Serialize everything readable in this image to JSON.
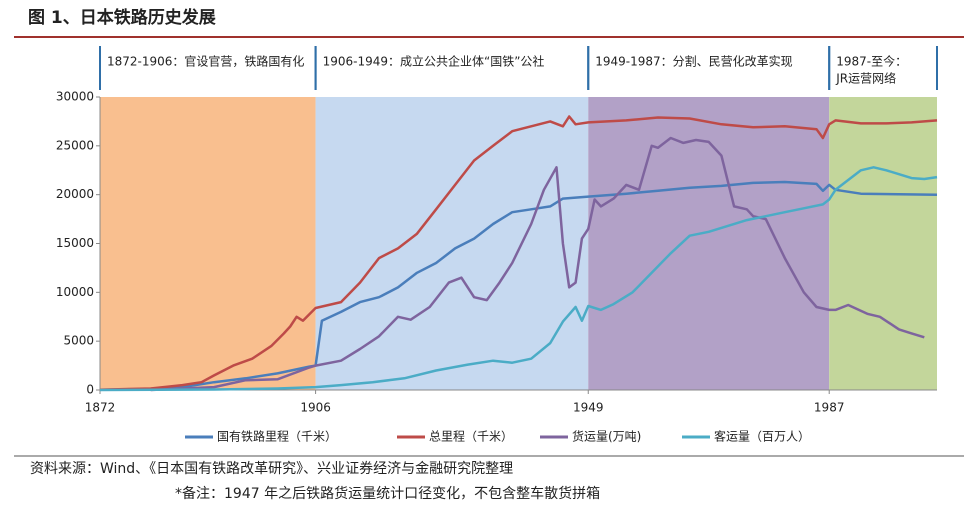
{
  "chart_data": {
    "type": "line",
    "title": "图 1、日本铁路历史发展",
    "xlim": [
      1872,
      2004
    ],
    "xticks": [
      1872,
      1906,
      1949,
      1987
    ],
    "ylim": [
      0,
      30000
    ],
    "yticks": [
      0,
      5000,
      10000,
      15000,
      20000,
      25000,
      30000
    ],
    "legend": "bottom",
    "eras": [
      {
        "label": [
          "1872-1906：官设官营，铁路国有化"
        ],
        "start": 1872,
        "end": 1906,
        "color": "#f9bf8f"
      },
      {
        "label": [
          "1906-1949：成立公共企业体“国铁”公社"
        ],
        "start": 1906,
        "end": 1949,
        "color": "#c6d9f0"
      },
      {
        "label": [
          "1949-1987：分割、民营化改革实现"
        ],
        "start": 1949,
        "end": 1987,
        "color": "#b2a1c7"
      },
      {
        "label": [
          "1987-至今：",
          "JR运营网络"
        ],
        "start": 1987,
        "end": 2004,
        "color": "#c3d69b"
      }
    ],
    "series": [
      {
        "name": "国有铁路里程（千米）",
        "color": "#4a7ebb",
        "x": [
          1872,
          1880,
          1885,
          1890,
          1895,
          1900,
          1905,
          1906,
          1907,
          1910,
          1913,
          1916,
          1919,
          1922,
          1925,
          1928,
          1931,
          1934,
          1937,
          1940,
          1943,
          1945,
          1949,
          1955,
          1960,
          1965,
          1970,
          1975,
          1980,
          1985,
          1986,
          1987,
          1988,
          1992,
          2004
        ],
        "values": [
          30,
          100,
          300,
          800,
          1200,
          1700,
          2400,
          2500,
          7100,
          8000,
          9000,
          9500,
          10500,
          12000,
          13000,
          14500,
          15500,
          17000,
          18200,
          18500,
          18800,
          19600,
          19800,
          20100,
          20400,
          20700,
          20900,
          21200,
          21300,
          21100,
          20400,
          21000,
          20500,
          20100,
          20000
        ]
      },
      {
        "name": "总里程（千米）",
        "color": "#be4b48",
        "x": [
          1872,
          1880,
          1885,
          1888,
          1890,
          1893,
          1896,
          1899,
          1901,
          1902,
          1903,
          1904,
          1906,
          1910,
          1913,
          1916,
          1919,
          1922,
          1925,
          1928,
          1931,
          1934,
          1937,
          1940,
          1943,
          1945,
          1946,
          1947,
          1949,
          1955,
          1960,
          1965,
          1970,
          1975,
          1980,
          1985,
          1986,
          1987,
          1988,
          1992,
          1996,
          2000,
          2004
        ],
        "values": [
          30,
          150,
          500,
          800,
          1500,
          2500,
          3200,
          4500,
          5800,
          6500,
          7500,
          7100,
          8400,
          9000,
          11000,
          13500,
          14500,
          16000,
          18500,
          21000,
          23500,
          25000,
          26500,
          27000,
          27500,
          27000,
          28000,
          27200,
          27400,
          27600,
          27900,
          27800,
          27200,
          26900,
          27000,
          26700,
          25800,
          27200,
          27600,
          27300,
          27300,
          27400,
          27600
        ]
      },
      {
        "name": "货运量(万吨)",
        "color": "#7e649e",
        "x": [
          1880,
          1890,
          1895,
          1900,
          1905,
          1906,
          1910,
          1913,
          1916,
          1919,
          1921,
          1924,
          1927,
          1929,
          1931,
          1933,
          1935,
          1937,
          1940,
          1942,
          1944,
          1945,
          1946,
          1947,
          1948,
          1949,
          1950,
          1951,
          1953,
          1955,
          1957,
          1959,
          1960,
          1962,
          1964,
          1966,
          1968,
          1970,
          1972,
          1974,
          1975,
          1977,
          1980,
          1983,
          1985,
          1987,
          1988,
          1990,
          1993,
          1995,
          1998,
          2000,
          2002
        ],
        "values": [
          0,
          300,
          1000,
          1100,
          2300,
          2500,
          3000,
          4200,
          5500,
          7500,
          7200,
          8500,
          11000,
          11500,
          9500,
          9200,
          11000,
          13000,
          17000,
          20500,
          22800,
          15000,
          10500,
          11000,
          15500,
          16500,
          19500,
          18800,
          19600,
          21000,
          20500,
          25000,
          24800,
          25800,
          25300,
          25600,
          25400,
          24000,
          18800,
          18500,
          17800,
          17500,
          13500,
          10000,
          8500,
          8200,
          8200,
          8700,
          7800,
          7500,
          6200,
          5800,
          5400
        ]
      },
      {
        "name": "客运量（百万人）",
        "color": "#4bacc6",
        "x": [
          1872,
          1890,
          1900,
          1906,
          1910,
          1915,
          1920,
          1925,
          1930,
          1934,
          1937,
          1940,
          1943,
          1945,
          1947,
          1948,
          1949,
          1951,
          1953,
          1956,
          1959,
          1962,
          1965,
          1968,
          1971,
          1974,
          1977,
          1980,
          1983,
          1986,
          1987,
          1988,
          1990,
          1992,
          1994,
          1996,
          1998,
          2000,
          2002,
          2004
        ],
        "values": [
          0,
          50,
          150,
          300,
          500,
          800,
          1200,
          2000,
          2600,
          3000,
          2800,
          3200,
          4800,
          7000,
          8500,
          7100,
          8600,
          8200,
          8800,
          10000,
          12000,
          14000,
          15800,
          16200,
          16800,
          17400,
          17800,
          18200,
          18600,
          19000,
          19500,
          20500,
          21500,
          22500,
          22800,
          22500,
          22100,
          21700,
          21600,
          21800
        ]
      }
    ],
    "notes": [
      "资料来源：Wind、《日本国有铁路改革研究》、兴业证券经济与金融研究院整理",
      "*备注：1947 年之后铁路货运量统计口径变化，不包含整车散货拼箱"
    ]
  }
}
